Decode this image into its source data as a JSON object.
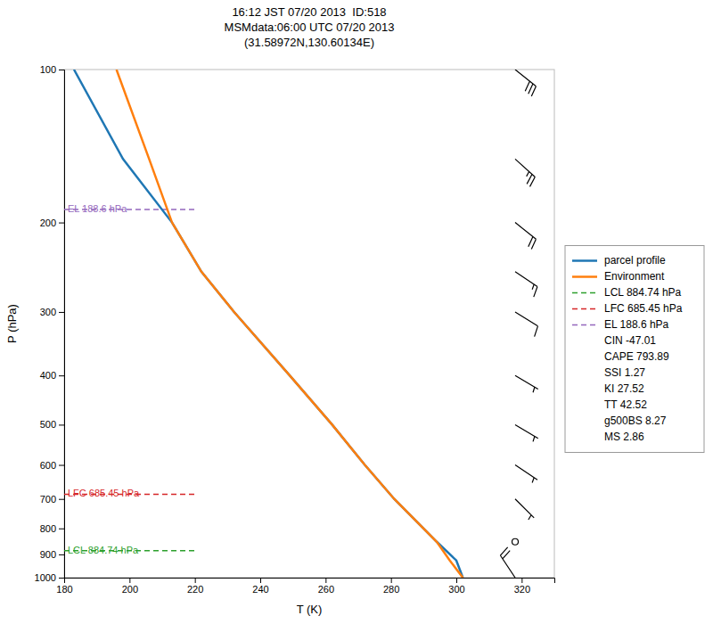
{
  "chart_data": {
    "type": "line",
    "title": "16:12 JST 07/20 2013  ID:518\nMSMdata:06:00 UTC 07/20 2013\n(31.58972N,130.60134E)",
    "x_label": "T (K)",
    "y_label": "P (hPa)",
    "xlim": [
      180,
      330
    ],
    "ylim": [
      1000,
      100
    ],
    "log": "y",
    "xticks": [
      180,
      200,
      220,
      240,
      260,
      280,
      300,
      320
    ],
    "yticks": [
      100,
      200,
      300,
      400,
      500,
      600,
      700,
      800,
      900,
      1000
    ],
    "grid": false,
    "legend": "right",
    "series": [
      {
        "name": "parcel profile",
        "color": "#1f77b4",
        "x": [
          183,
          198,
          213,
          222,
          232,
          249,
          262,
          272,
          281,
          294,
          300,
          302
        ],
        "values": [
          100,
          150,
          200,
          250,
          300,
          400,
          500,
          600,
          700,
          850,
          925,
          1000
        ]
      },
      {
        "name": "Environment",
        "color": "#ff7f0e",
        "x": [
          196,
          206,
          213,
          222,
          232,
          249,
          262,
          272,
          281,
          294,
          298,
          302
        ],
        "values": [
          100,
          150,
          200,
          250,
          300,
          400,
          500,
          600,
          700,
          850,
          925,
          1000
        ]
      }
    ],
    "reference_lines": [
      {
        "name": "LCL 884.74 hPa",
        "value": 884.74,
        "x": [
          180,
          220
        ],
        "color": "#2ca02c",
        "line_style": "dashed"
      },
      {
        "name": "LFC 685.45 hPa",
        "value": 685.45,
        "x": [
          180,
          220
        ],
        "color": "#d62728",
        "line_style": "dashed"
      },
      {
        "name": "EL 188.6 hPa",
        "value": 188.6,
        "x": [
          180,
          220
        ],
        "color": "#9467bd",
        "line_style": "dashed"
      }
    ],
    "legend_notes": [
      "CIN -47.01",
      "CAPE 793.89",
      "SSI 1.27",
      "KI 27.52",
      "TT 42.52",
      "g500BS 8.27",
      "MS 2.86"
    ],
    "wind_barbs": {
      "x": 318,
      "pressures": [
        100,
        150,
        200,
        250,
        300,
        400,
        500,
        600,
        700,
        850,
        1000
      ],
      "u": [
        -25,
        -20,
        -15,
        -12,
        -8,
        -5,
        -5,
        -3,
        -2,
        0,
        10
      ],
      "v": [
        20,
        18,
        12,
        8,
        5,
        3,
        3,
        2,
        2,
        0,
        -15
      ]
    }
  }
}
